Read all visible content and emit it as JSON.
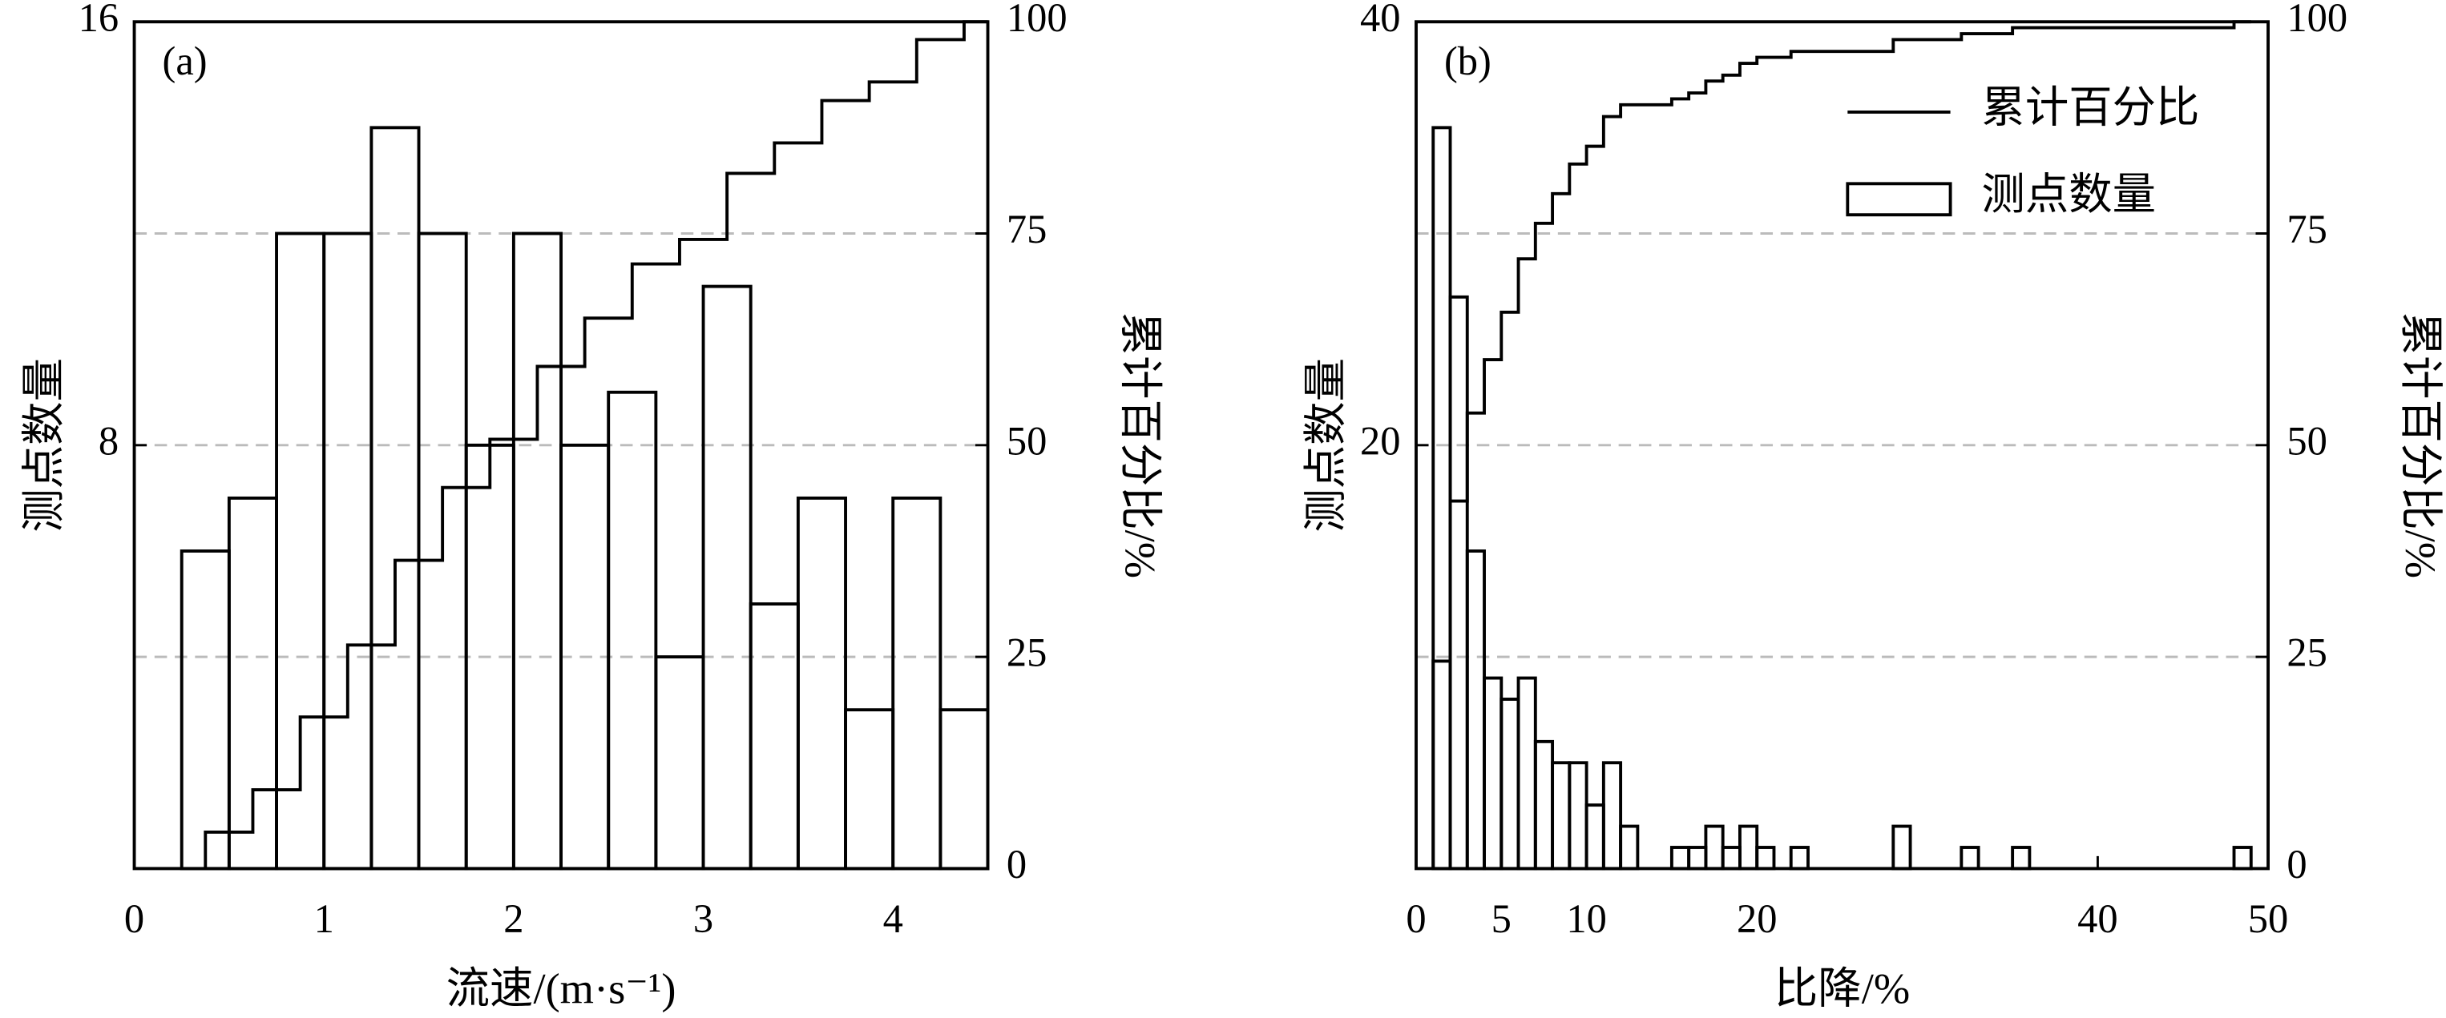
{
  "chart_data": [
    {
      "type": "histogram",
      "panel_label": "(a)",
      "x_label": "流速/(m·s⁻¹)",
      "y_label": "测点数量",
      "y2_label": "累计百分比/%",
      "xlim": [
        0,
        4.5
      ],
      "xticks": [
        0,
        1,
        2,
        3,
        4
      ],
      "ylim": [
        0,
        16
      ],
      "yticks": [
        8,
        16
      ],
      "y2lim": [
        0,
        100
      ],
      "y2ticks": [
        0,
        25,
        50,
        75,
        100
      ],
      "grid": true,
      "series": [
        {
          "color": "#000000",
          "bins": [
            0.25,
            0.5,
            0.75,
            1,
            1.25,
            1.5,
            1.75,
            2,
            2.25,
            2.5,
            2.75,
            3,
            3.25,
            3.5,
            3.75,
            4,
            4.25,
            4.5
          ],
          "values": [
            6,
            7,
            12,
            12,
            14,
            12,
            8,
            12,
            8,
            9,
            4,
            11,
            5,
            7,
            3,
            7,
            3
          ]
        },
        {
          "axis": "y2",
          "color": "#000000",
          "x": [
            0.375,
            0.625,
            0.875,
            1.125,
            1.375,
            1.625,
            1.875,
            2.125,
            2.375,
            2.625,
            2.875,
            3.125,
            3.375,
            3.625,
            3.875,
            4.125,
            4.375
          ],
          "values": [
            4.3,
            9.3,
            17.9,
            26.4,
            36.4,
            45.0,
            50.7,
            59.3,
            65.0,
            71.4,
            74.3,
            82.1,
            85.7,
            90.7,
            92.9,
            97.9,
            100
          ]
        }
      ]
    },
    {
      "type": "histogram",
      "panel_label": "(b)",
      "x_label": "比降/%",
      "y_label": "测点数量",
      "y2_label": "累计百分比/%",
      "xlim": [
        0,
        50
      ],
      "xticks": [
        0,
        5,
        10,
        20,
        40,
        50
      ],
      "ylim": [
        0,
        40
      ],
      "yticks": [
        20,
        40
      ],
      "y2lim": [
        0,
        100
      ],
      "y2ticks": [
        0,
        25,
        50,
        75,
        100
      ],
      "grid": true,
      "legend": "upper right",
      "series": [
        {
          "name": "测点数量",
          "color": "#000000",
          "bins": [
            1,
            2,
            3,
            4,
            5,
            6,
            7,
            8,
            9,
            10,
            11,
            12,
            13,
            14,
            15,
            16,
            17,
            18,
            19,
            20,
            21,
            22,
            23,
            24,
            25,
            26,
            27,
            28,
            29,
            30,
            31,
            32,
            33,
            34,
            35,
            36,
            37,
            38,
            39,
            40,
            41,
            42,
            43,
            44,
            45,
            46,
            47,
            48,
            49,
            50
          ],
          "values": [
            35,
            27,
            15,
            9,
            8,
            9,
            6,
            5,
            5,
            3,
            5,
            2,
            0,
            0,
            1,
            1,
            2,
            1,
            2,
            1,
            0,
            1,
            0,
            0,
            0,
            0,
            0,
            2,
            0,
            0,
            0,
            1,
            0,
            0,
            1,
            0,
            0,
            0,
            0,
            0,
            0,
            0,
            0,
            0,
            0,
            0,
            0,
            1,
            0
          ]
        },
        {
          "name": "累计百分比",
          "axis": "y2",
          "color": "#000000",
          "x": [
            1,
            2,
            3,
            4,
            5,
            6,
            7,
            8,
            9,
            10,
            11,
            12,
            15,
            16,
            17,
            18,
            19,
            20,
            22,
            28,
            32,
            35,
            48
          ],
          "values": [
            24.5,
            43.4,
            53.8,
            60.1,
            65.7,
            72.0,
            76.2,
            79.7,
            83.2,
            85.3,
            88.8,
            90.2,
            90.9,
            91.6,
            93.0,
            93.7,
            95.1,
            95.8,
            96.5,
            97.9,
            98.6,
            99.3,
            100
          ]
        }
      ]
    }
  ]
}
